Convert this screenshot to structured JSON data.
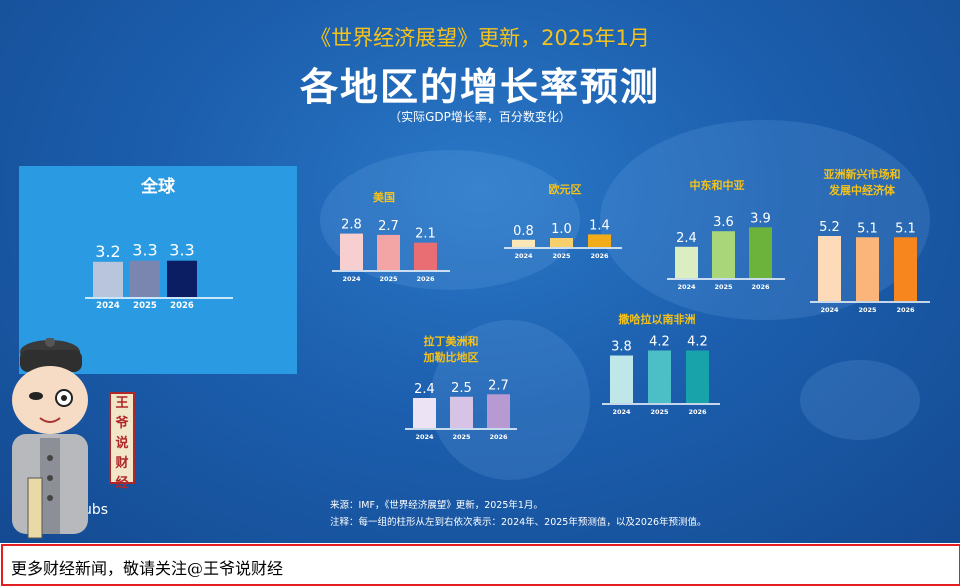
{
  "header": {
    "subtitle": "《世界经济展望》更新，2025年1月",
    "title": "各地区的增长率预测",
    "note": "（实际GDP增长率，百分数变化）"
  },
  "footer": {
    "source": "来源：IMF，《世界经济展望》更新，2025年1月。",
    "note": "注释：每一组的柱形从左到右依次表示：2024年、2025年预测值，以及2026年预测值。"
  },
  "watermark": "IMF.org/pubs",
  "seal_text": [
    "王",
    "爷",
    "说",
    "财",
    "经"
  ],
  "bottom_banner": "更多财经新闻，敬请关注@王爷说财经",
  "colors": {
    "background": "#1c5fae",
    "title_yellow": "#f4c21a",
    "panel": "#2a9be3"
  },
  "chart_data": [
    {
      "type": "bar",
      "title": "全球",
      "categories": [
        "2024",
        "2025",
        "2026"
      ],
      "values": [
        3.2,
        3.3,
        3.3
      ],
      "colors": [
        "#b9c4dd",
        "#7a86b0",
        "#0b1d63"
      ]
    },
    {
      "type": "bar",
      "title": "美国",
      "categories": [
        "2024",
        "2025",
        "2026"
      ],
      "values": [
        2.8,
        2.7,
        2.1
      ],
      "colors": [
        "#f8cfd0",
        "#f3a4a5",
        "#e86e73"
      ]
    },
    {
      "type": "bar",
      "title": "欧元区",
      "categories": [
        "2024",
        "2025",
        "2026"
      ],
      "values": [
        0.8,
        1.0,
        1.4
      ],
      "colors": [
        "#fbe8b6",
        "#f7cf6b",
        "#f2ac1a"
      ]
    },
    {
      "type": "bar",
      "title": "中东和中亚",
      "categories": [
        "2024",
        "2025",
        "2026"
      ],
      "values": [
        2.4,
        3.6,
        3.9
      ],
      "colors": [
        "#dbeec1",
        "#a9d679",
        "#6cb33b"
      ]
    },
    {
      "type": "bar",
      "title": "亚洲新兴市场和\n发展中经济体",
      "categories": [
        "2024",
        "2025",
        "2026"
      ],
      "values": [
        5.2,
        5.1,
        5.1
      ],
      "colors": [
        "#fddab8",
        "#fbb57a",
        "#f7861f"
      ]
    },
    {
      "type": "bar",
      "title": "拉丁美洲和\n加勒比地区",
      "categories": [
        "2024",
        "2025",
        "2026"
      ],
      "values": [
        2.4,
        2.5,
        2.7
      ],
      "colors": [
        "#ece4f4",
        "#d6c3e6",
        "#b69ad1"
      ]
    },
    {
      "type": "bar",
      "title": "撒哈拉以南非洲",
      "categories": [
        "2024",
        "2025",
        "2026"
      ],
      "values": [
        3.8,
        4.2,
        4.2
      ],
      "colors": [
        "#bfe6e8",
        "#4cbfc6",
        "#18a3aa"
      ]
    }
  ]
}
